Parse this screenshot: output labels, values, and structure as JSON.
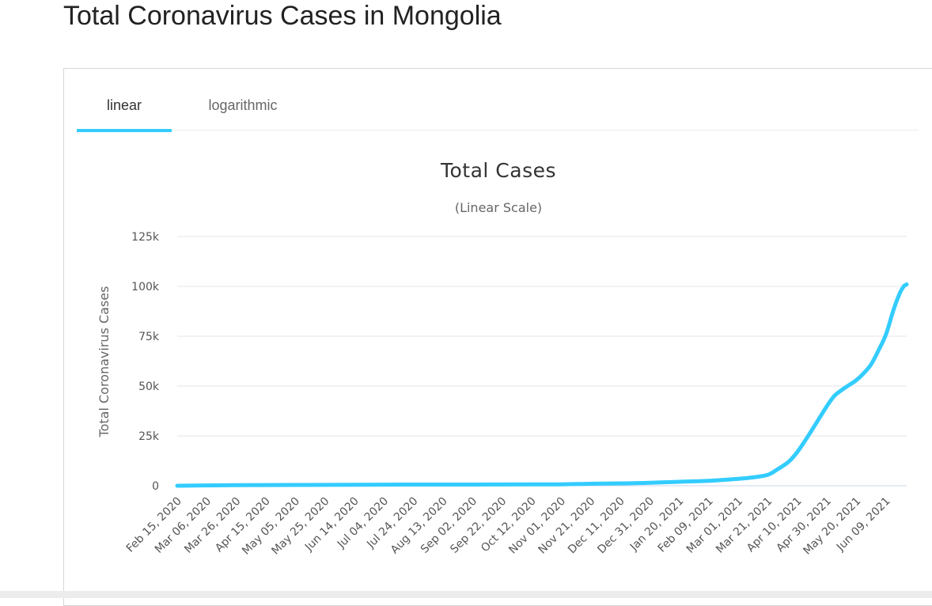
{
  "page_title": "Total Coronavirus Cases in Mongolia",
  "tabs": [
    {
      "label": "linear",
      "active": true
    },
    {
      "label": "logarithmic",
      "active": false
    }
  ],
  "colors": {
    "accent": "#33ccff",
    "line": "#33ccff",
    "grid": "#e6e6e6",
    "text": "#333333"
  },
  "chart_data": {
    "type": "line",
    "title": "Total Cases",
    "subtitle": "(Linear Scale)",
    "ylabel": "Total Coronavirus Cases",
    "xlabel": "",
    "ylim": [
      0,
      125000
    ],
    "y_ticks": [
      0,
      25000,
      50000,
      75000,
      100000,
      125000
    ],
    "y_tick_labels": [
      "0",
      "25k",
      "50k",
      "75k",
      "100k",
      "125k"
    ],
    "x_tick_labels": [
      "Feb 15, 2020",
      "Mar 06, 2020",
      "Mar 26, 2020",
      "Apr 15, 2020",
      "May 05, 2020",
      "May 25, 2020",
      "Jun 14, 2020",
      "Jul 04, 2020",
      "Jul 24, 2020",
      "Aug 13, 2020",
      "Sep 02, 2020",
      "Sep 22, 2020",
      "Oct 12, 2020",
      "Nov 01, 2020",
      "Nov 21, 2020",
      "Dec 11, 2020",
      "Dec 31, 2020",
      "Jan 20, 2021",
      "Feb 09, 2021",
      "Mar 01, 2021",
      "Mar 21, 2021",
      "Apr 10, 2021",
      "Apr 30, 2021",
      "May 20, 2021",
      "Jun 09, 2021"
    ],
    "x_range": [
      "2020-02-15",
      "2021-06-23"
    ],
    "grid": true,
    "legend": "none",
    "series": [
      {
        "x": [
          "2020-02-15",
          "2020-03-26",
          "2020-05-05",
          "2020-06-14",
          "2020-07-24",
          "2020-09-02",
          "2020-10-12",
          "2020-11-01",
          "2020-11-21",
          "2020-12-11",
          "2020-12-31",
          "2021-01-20",
          "2021-02-09",
          "2021-03-01",
          "2021-03-11",
          "2021-03-21",
          "2021-03-27",
          "2021-04-04",
          "2021-04-10",
          "2021-04-16",
          "2021-04-22",
          "2021-04-30",
          "2021-05-05",
          "2021-05-10",
          "2021-05-15",
          "2021-05-20",
          "2021-05-25",
          "2021-05-30",
          "2021-06-04",
          "2021-06-09",
          "2021-06-14",
          "2021-06-18",
          "2021-06-21",
          "2021-06-23"
        ],
        "values": [
          0,
          300,
          400,
          500,
          600,
          600,
          700,
          700,
          1000,
          1200,
          1500,
          2000,
          2500,
          3500,
          4200,
          5500,
          8000,
          12000,
          17000,
          23500,
          30500,
          40000,
          45000,
          48000,
          50500,
          53000,
          56500,
          61000,
          68000,
          76000,
          88000,
          96000,
          100000,
          101000
        ]
      }
    ]
  }
}
